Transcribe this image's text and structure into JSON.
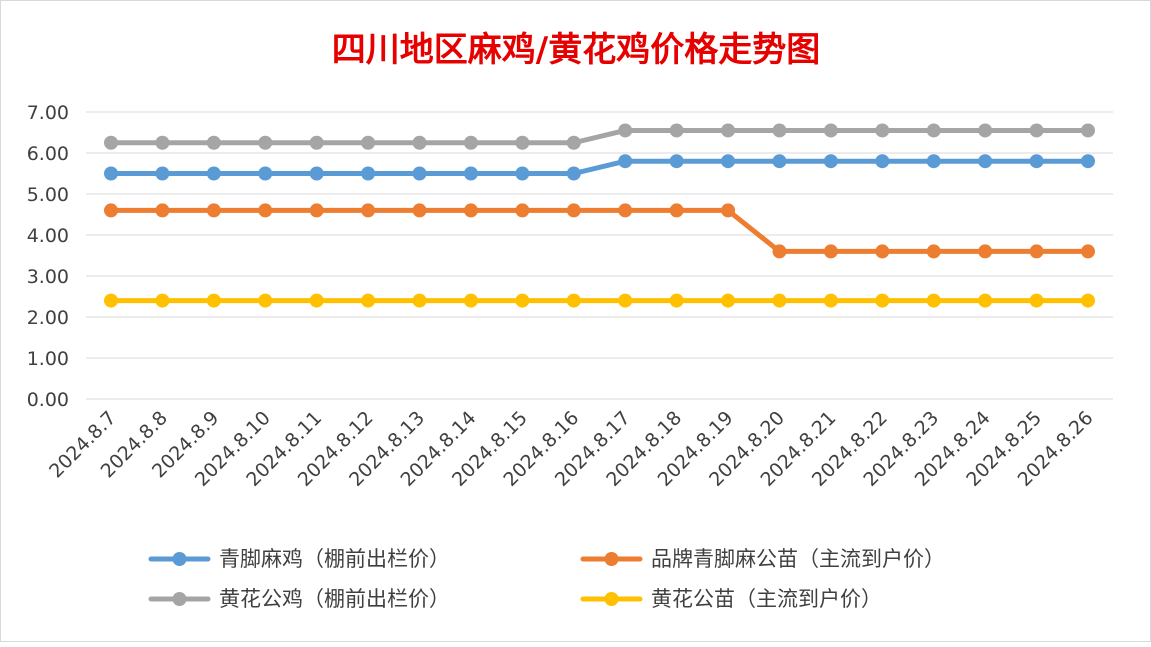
{
  "chart_data": {
    "type": "line",
    "title": "四川地区麻鸡/黄花鸡价格走势图",
    "xlabel": "",
    "ylabel": "",
    "categories": [
      "2024.8.7",
      "2024.8.8",
      "2024.8.9",
      "2024.8.10",
      "2024.8.11",
      "2024.8.12",
      "2024.8.13",
      "2024.8.14",
      "2024.8.15",
      "2024.8.16",
      "2024.8.17",
      "2024.8.18",
      "2024.8.19",
      "2024.8.20",
      "2024.8.21",
      "2024.8.22",
      "2024.8.23",
      "2024.8.24",
      "2024.8.25",
      "2024.8.26"
    ],
    "ylim": [
      0,
      7
    ],
    "yticks": [
      "0.00",
      "1.00",
      "2.00",
      "3.00",
      "4.00",
      "5.00",
      "6.00",
      "7.00"
    ],
    "grid": true,
    "legend_position": "bottom",
    "series": [
      {
        "name": "青脚麻鸡（棚前出栏价）",
        "color": "#5b9bd5",
        "values": [
          5.5,
          5.5,
          5.5,
          5.5,
          5.5,
          5.5,
          5.5,
          5.5,
          5.5,
          5.5,
          5.8,
          5.8,
          5.8,
          5.8,
          5.8,
          5.8,
          5.8,
          5.8,
          5.8,
          5.8
        ]
      },
      {
        "name": "品牌青脚麻公苗（主流到户价）",
        "color": "#ed7d31",
        "values": [
          4.6,
          4.6,
          4.6,
          4.6,
          4.6,
          4.6,
          4.6,
          4.6,
          4.6,
          4.6,
          4.6,
          4.6,
          4.6,
          3.6,
          3.6,
          3.6,
          3.6,
          3.6,
          3.6,
          3.6
        ]
      },
      {
        "name": "黄花公鸡（棚前出栏价）",
        "color": "#a5a5a5",
        "values": [
          6.25,
          6.25,
          6.25,
          6.25,
          6.25,
          6.25,
          6.25,
          6.25,
          6.25,
          6.25,
          6.55,
          6.55,
          6.55,
          6.55,
          6.55,
          6.55,
          6.55,
          6.55,
          6.55,
          6.55
        ]
      },
      {
        "name": "黄花公苗（主流到户价）",
        "color": "#ffc000",
        "values": [
          2.4,
          2.4,
          2.4,
          2.4,
          2.4,
          2.4,
          2.4,
          2.4,
          2.4,
          2.4,
          2.4,
          2.4,
          2.4,
          2.4,
          2.4,
          2.4,
          2.4,
          2.4,
          2.4,
          2.4
        ]
      }
    ]
  }
}
